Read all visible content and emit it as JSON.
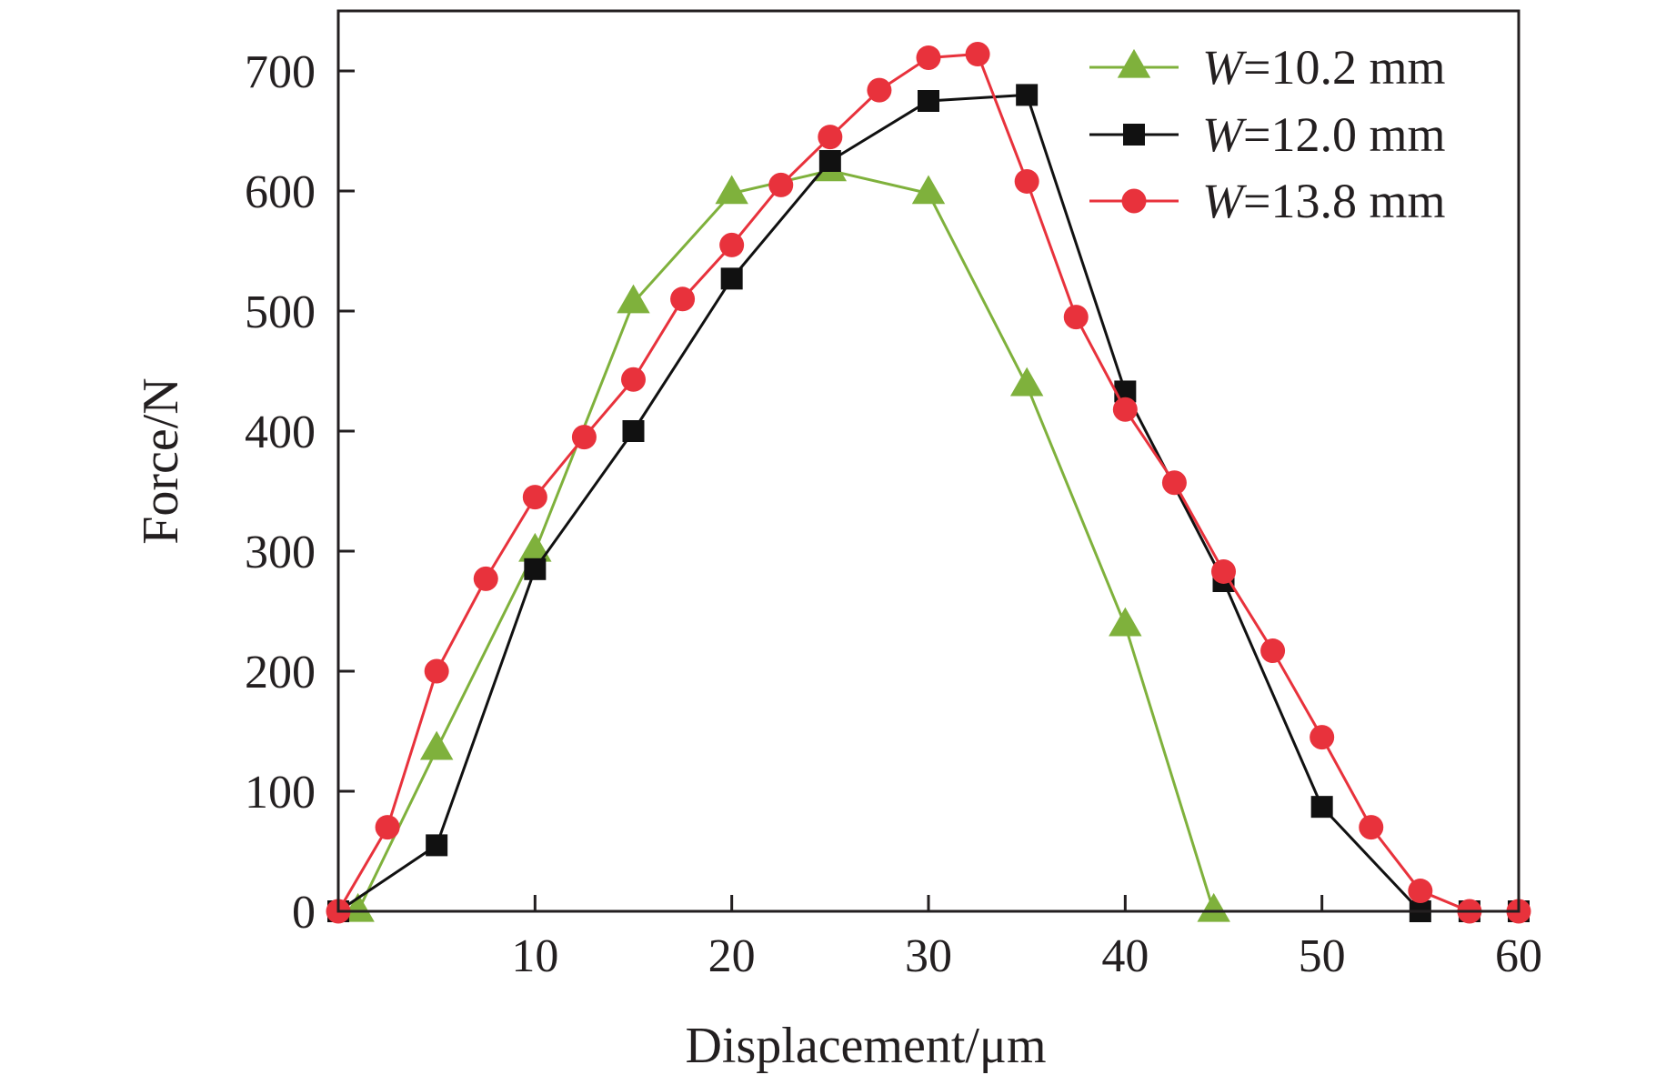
{
  "chart_data": {
    "type": "line",
    "title": "",
    "xlabel": "Displacement/μm",
    "ylabel": "Force/N",
    "xlim": [
      0,
      60
    ],
    "ylim": [
      0,
      750
    ],
    "xticks": [
      10,
      20,
      30,
      40,
      50,
      60
    ],
    "yticks": [
      0,
      100,
      200,
      300,
      400,
      500,
      600,
      700
    ],
    "grid": false,
    "legend_position": "top-right",
    "series": [
      {
        "name": "W=10.2 mm",
        "legend_var": "W",
        "legend_rest": "=10.2 mm",
        "marker": "triangle",
        "color": "#7fb13c",
        "x": [
          1,
          5,
          10,
          15,
          20,
          25,
          30,
          35,
          40,
          44.5
        ],
        "y": [
          0,
          135,
          300,
          507,
          598,
          617,
          598,
          438,
          238,
          0
        ]
      },
      {
        "name": "W=12.0 mm",
        "legend_var": "W",
        "legend_rest": "=12.0 mm",
        "marker": "square",
        "color": "#111111",
        "x": [
          0,
          5,
          10,
          15,
          20,
          25,
          30,
          35,
          40,
          45,
          50,
          55,
          57.5,
          60
        ],
        "y": [
          0,
          55,
          285,
          400,
          527,
          625,
          675,
          680,
          433,
          275,
          87,
          0,
          0,
          0
        ]
      },
      {
        "name": "W=13.8 mm",
        "legend_var": "W",
        "legend_rest": "=13.8 mm",
        "marker": "circle",
        "color": "#e8323c",
        "x": [
          0,
          2.5,
          5,
          7.5,
          10,
          12.5,
          15,
          17.5,
          20,
          22.5,
          25,
          27.5,
          30,
          32.5,
          35,
          37.5,
          40,
          42.5,
          45,
          47.5,
          50,
          52.5,
          55,
          57.5,
          60
        ],
        "y": [
          0,
          70,
          200,
          277,
          345,
          395,
          443,
          510,
          555,
          605,
          645,
          684,
          711,
          714,
          608,
          495,
          418,
          357,
          283,
          217,
          145,
          70,
          17,
          0,
          0
        ]
      }
    ]
  }
}
